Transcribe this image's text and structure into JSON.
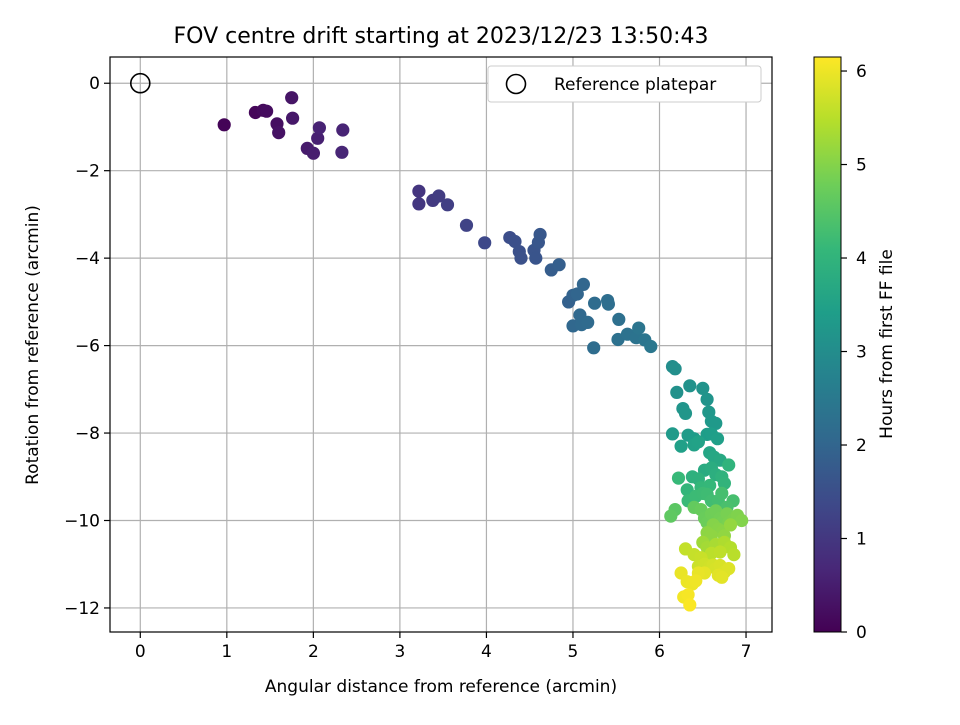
{
  "chart_data": {
    "type": "scatter",
    "title": "FOV centre drift starting at 2023/12/23 13:50:43",
    "xlabel": "Angular distance from reference (arcmin)",
    "ylabel": "Rotation from reference (arcmin)",
    "xlim": [
      -0.35,
      7.3
    ],
    "ylim": [
      -12.55,
      0.6
    ],
    "xticks": [
      0,
      1,
      2,
      3,
      4,
      5,
      6,
      7
    ],
    "yticks": [
      0,
      -2,
      -4,
      -6,
      -8,
      -10,
      -12
    ],
    "grid": true,
    "legend": {
      "position": "top-right",
      "entries": [
        {
          "label": "Reference platepar",
          "marker": "open-circle"
        }
      ]
    },
    "reference_point": {
      "x": 0,
      "y": 0
    },
    "colorbar": {
      "label": "Hours from first FF file",
      "min": 0,
      "max": 6.15,
      "ticks": [
        0,
        1,
        2,
        3,
        4,
        5,
        6
      ],
      "colormap": "viridis"
    },
    "points": [
      [
        0.97,
        -0.95,
        0.05
      ],
      [
        1.33,
        -0.67,
        0.1
      ],
      [
        1.42,
        -0.62,
        0.15
      ],
      [
        1.46,
        -0.64,
        0.2
      ],
      [
        1.58,
        -0.93,
        0.25
      ],
      [
        1.6,
        -1.13,
        0.3
      ],
      [
        1.75,
        -0.33,
        0.35
      ],
      [
        1.76,
        -0.8,
        0.4
      ],
      [
        1.93,
        -1.49,
        0.45
      ],
      [
        2.0,
        -1.6,
        0.5
      ],
      [
        2.05,
        -1.26,
        0.55
      ],
      [
        2.07,
        -1.02,
        0.6
      ],
      [
        2.34,
        -1.07,
        0.62
      ],
      [
        2.33,
        -1.58,
        0.65
      ],
      [
        3.22,
        -2.47,
        0.95
      ],
      [
        3.22,
        -2.76,
        1.0
      ],
      [
        3.38,
        -2.68,
        1.05
      ],
      [
        3.45,
        -2.58,
        1.1
      ],
      [
        3.55,
        -2.78,
        1.15
      ],
      [
        3.77,
        -3.25,
        1.25
      ],
      [
        3.98,
        -3.65,
        1.35
      ],
      [
        4.27,
        -3.53,
        1.45
      ],
      [
        4.33,
        -3.62,
        1.5
      ],
      [
        4.38,
        -3.85,
        1.52
      ],
      [
        4.4,
        -4.0,
        1.55
      ],
      [
        4.55,
        -3.82,
        1.6
      ],
      [
        4.57,
        -4.0,
        1.62
      ],
      [
        4.6,
        -3.64,
        1.65
      ],
      [
        4.62,
        -3.46,
        1.68
      ],
      [
        4.75,
        -4.27,
        1.8
      ],
      [
        4.84,
        -4.15,
        1.85
      ],
      [
        4.95,
        -5.0,
        1.9
      ],
      [
        5.0,
        -4.85,
        1.95
      ],
      [
        5.05,
        -4.82,
        2.0
      ],
      [
        5.12,
        -4.6,
        2.02
      ],
      [
        5.0,
        -5.55,
        2.05
      ],
      [
        5.08,
        -5.3,
        2.08
      ],
      [
        5.1,
        -5.52,
        2.1
      ],
      [
        5.17,
        -5.47,
        2.12
      ],
      [
        5.25,
        -5.03,
        2.15
      ],
      [
        5.24,
        -6.05,
        2.18
      ],
      [
        5.4,
        -4.97,
        2.2
      ],
      [
        5.41,
        -5.05,
        2.22
      ],
      [
        5.53,
        -5.4,
        2.25
      ],
      [
        5.52,
        -5.86,
        2.28
      ],
      [
        5.63,
        -5.74,
        2.3
      ],
      [
        5.73,
        -5.82,
        2.35
      ],
      [
        5.76,
        -5.6,
        2.38
      ],
      [
        5.83,
        -5.87,
        2.4
      ],
      [
        5.9,
        -6.02,
        2.45
      ],
      [
        6.15,
        -6.48,
        3.0
      ],
      [
        6.18,
        -6.53,
        3.05
      ],
      [
        6.2,
        -7.07,
        3.1
      ],
      [
        6.35,
        -6.92,
        3.12
      ],
      [
        6.5,
        -6.98,
        3.15
      ],
      [
        6.55,
        -7.23,
        3.18
      ],
      [
        6.27,
        -7.44,
        3.2
      ],
      [
        6.3,
        -7.55,
        3.22
      ],
      [
        6.57,
        -7.52,
        3.25
      ],
      [
        6.6,
        -7.73,
        3.28
      ],
      [
        6.65,
        -7.78,
        3.3
      ],
      [
        6.15,
        -8.02,
        3.32
      ],
      [
        6.33,
        -8.05,
        3.35
      ],
      [
        6.4,
        -8.13,
        3.38
      ],
      [
        6.55,
        -8.03,
        3.4
      ],
      [
        6.6,
        -8.02,
        3.42
      ],
      [
        6.67,
        -8.13,
        3.45
      ],
      [
        6.25,
        -8.3,
        3.48
      ],
      [
        6.4,
        -8.27,
        3.5
      ],
      [
        6.45,
        -8.2,
        3.52
      ],
      [
        6.58,
        -8.45,
        3.6
      ],
      [
        6.63,
        -8.55,
        3.65
      ],
      [
        6.7,
        -8.62,
        3.7
      ],
      [
        6.52,
        -8.85,
        3.75
      ],
      [
        6.6,
        -8.8,
        3.8
      ],
      [
        6.65,
        -8.95,
        3.85
      ],
      [
        6.38,
        -9.0,
        3.9
      ],
      [
        6.45,
        -9.05,
        3.92
      ],
      [
        6.72,
        -9.0,
        3.95
      ],
      [
        6.8,
        -8.73,
        3.98
      ],
      [
        6.75,
        -9.15,
        4.0
      ],
      [
        6.32,
        -9.3,
        4.05
      ],
      [
        6.48,
        -9.25,
        4.08
      ],
      [
        6.58,
        -9.2,
        4.1
      ],
      [
        6.22,
        -9.03,
        4.12
      ],
      [
        6.33,
        -9.55,
        4.15
      ],
      [
        6.42,
        -9.45,
        4.18
      ],
      [
        6.5,
        -9.38,
        4.2
      ],
      [
        6.55,
        -9.4,
        4.22
      ],
      [
        6.6,
        -9.55,
        4.25
      ],
      [
        6.68,
        -9.55,
        4.28
      ],
      [
        6.72,
        -9.38,
        4.3
      ],
      [
        6.85,
        -9.55,
        4.32
      ],
      [
        6.78,
        -9.7,
        4.35
      ],
      [
        6.18,
        -9.75,
        4.55
      ],
      [
        6.13,
        -9.9,
        4.6
      ],
      [
        6.4,
        -9.7,
        4.65
      ],
      [
        6.48,
        -9.75,
        4.7
      ],
      [
        6.52,
        -9.95,
        4.72
      ],
      [
        6.55,
        -10.05,
        4.75
      ],
      [
        6.6,
        -9.85,
        4.78
      ],
      [
        6.65,
        -9.78,
        4.8
      ],
      [
        6.7,
        -9.95,
        4.82
      ],
      [
        6.72,
        -10.05,
        4.85
      ],
      [
        6.78,
        -9.85,
        4.88
      ],
      [
        6.8,
        -10.05,
        4.9
      ],
      [
        6.85,
        -9.98,
        4.92
      ],
      [
        6.9,
        -9.88,
        4.95
      ],
      [
        6.95,
        -10.0,
        4.98
      ],
      [
        6.62,
        -10.1,
        5.0
      ],
      [
        6.68,
        -10.2,
        5.02
      ],
      [
        6.73,
        -10.25,
        5.05
      ],
      [
        6.55,
        -10.28,
        5.08
      ],
      [
        6.6,
        -10.35,
        5.1
      ],
      [
        6.75,
        -10.35,
        5.12
      ],
      [
        6.82,
        -10.1,
        5.15
      ],
      [
        6.5,
        -10.5,
        5.25
      ],
      [
        6.55,
        -10.62,
        5.3
      ],
      [
        6.65,
        -10.55,
        5.35
      ],
      [
        6.75,
        -10.5,
        5.4
      ],
      [
        6.82,
        -10.62,
        5.45
      ],
      [
        6.86,
        -10.78,
        5.5
      ],
      [
        6.6,
        -10.75,
        5.52
      ],
      [
        6.7,
        -10.72,
        5.55
      ],
      [
        6.3,
        -10.65,
        5.6
      ],
      [
        6.4,
        -10.78,
        5.62
      ],
      [
        6.48,
        -10.85,
        5.65
      ],
      [
        6.45,
        -11.05,
        5.68
      ],
      [
        6.52,
        -11.0,
        5.7
      ],
      [
        6.58,
        -11.05,
        5.72
      ],
      [
        6.62,
        -11.02,
        5.75
      ],
      [
        6.65,
        -11.1,
        5.78
      ],
      [
        6.7,
        -11.03,
        5.8
      ],
      [
        6.75,
        -11.18,
        5.82
      ],
      [
        6.8,
        -11.1,
        5.85
      ],
      [
        6.68,
        -11.25,
        5.88
      ],
      [
        6.72,
        -11.3,
        5.9
      ],
      [
        6.52,
        -11.2,
        5.92
      ],
      [
        6.45,
        -11.2,
        5.95
      ],
      [
        6.25,
        -11.2,
        5.96
      ],
      [
        6.32,
        -11.4,
        5.98
      ],
      [
        6.38,
        -11.45,
        6.0
      ],
      [
        6.42,
        -11.38,
        6.02
      ],
      [
        6.28,
        -11.75,
        6.05
      ],
      [
        6.33,
        -11.7,
        6.08
      ],
      [
        6.35,
        -11.93,
        6.12
      ]
    ]
  }
}
